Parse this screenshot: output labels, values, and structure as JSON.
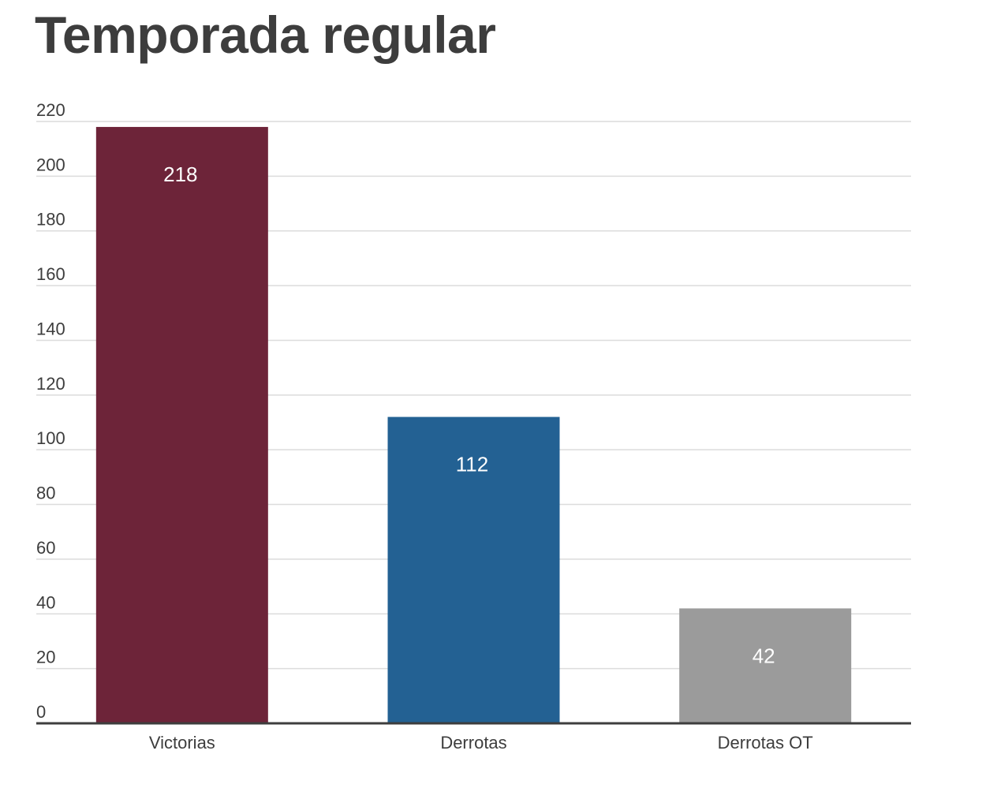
{
  "chart_data": {
    "type": "bar",
    "title": "Temporada regular",
    "xlabel": "",
    "ylabel": "",
    "categories": [
      "Victorias",
      "Derrotas",
      "Derrotas OT"
    ],
    "values": [
      218,
      112,
      42
    ],
    "value_labels": [
      "218",
      "112",
      "42"
    ],
    "colors": [
      "#6d2439",
      "#236193",
      "#9b9b9b"
    ],
    "ylim": [
      0,
      220
    ],
    "yticks": [
      0,
      20,
      40,
      60,
      80,
      100,
      120,
      140,
      160,
      180,
      200,
      220
    ],
    "ytick_labels": [
      "0",
      "20",
      "40",
      "60",
      "80",
      "100",
      "120",
      "140",
      "160",
      "180",
      "200",
      "220"
    ],
    "grid": true,
    "legend": "none"
  }
}
